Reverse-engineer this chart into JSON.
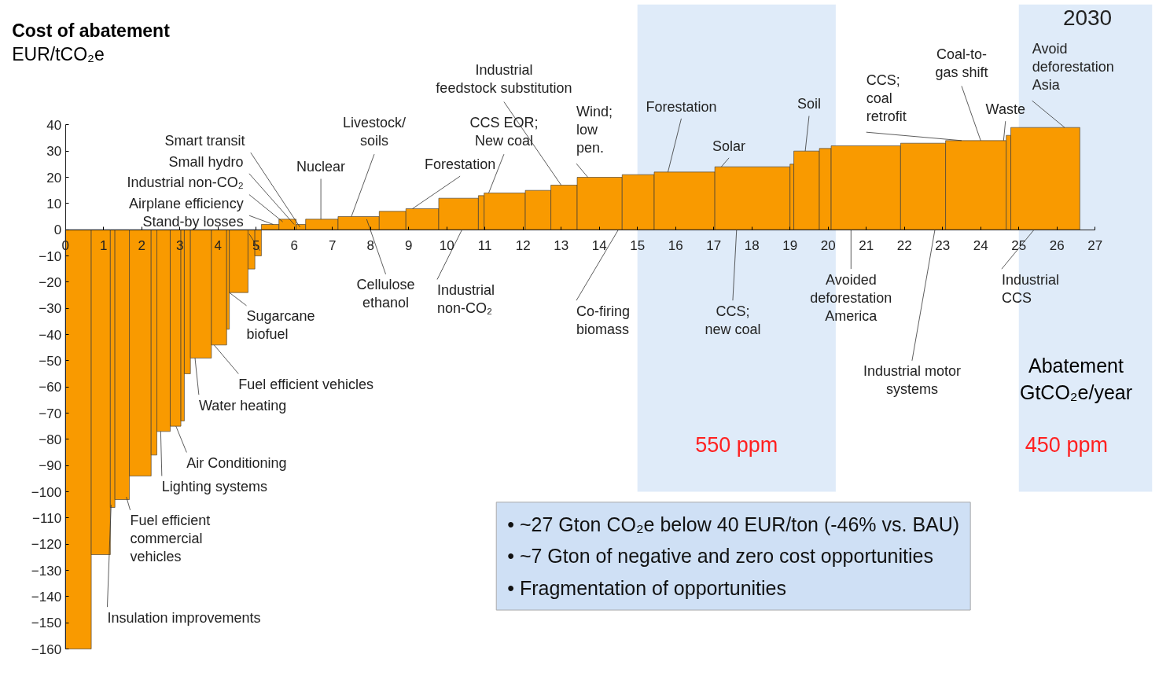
{
  "chart_data": {
    "type": "histogram",
    "title": "Cost of abatement",
    "ylabel": "EUR/tCO₂e",
    "xlabel": "Abatement\nGtCO₂e/year",
    "bins": [
      0,
      0.68,
      1.18,
      1.3,
      1.68,
      2.25,
      2.4,
      2.75,
      3.03,
      3.12,
      3.28,
      3.83,
      4.23,
      4.3,
      4.79,
      4.97,
      5.14,
      5.6,
      6.05,
      6.3,
      7.15,
      8.23,
      8.93,
      9.79,
      10.83,
      10.98,
      12.06,
      12.73,
      13.42,
      14.6,
      15.44,
      17.03,
      19.0,
      19.1,
      19.77,
      20.08,
      21.9,
      23.08,
      24.67,
      24.79,
      26.6
    ],
    "values": [
      -160,
      -124,
      -106,
      -103,
      -94,
      -86,
      -77,
      -75,
      -73,
      -55,
      -49,
      -44,
      -38,
      -24,
      -15,
      -10,
      2,
      4,
      2,
      4,
      5,
      7,
      8,
      12,
      13,
      14,
      15,
      17,
      20,
      21,
      22,
      24,
      25,
      30,
      31,
      32,
      33,
      34,
      36,
      39
    ],
    "color": "#f99a00",
    "xlim": [
      0,
      27
    ],
    "ylim": [
      -160,
      40
    ],
    "xticks": [
      0,
      1,
      2,
      3,
      4,
      5,
      6,
      7,
      8,
      9,
      10,
      11,
      12,
      13,
      14,
      15,
      16,
      17,
      18,
      19,
      20,
      21,
      22,
      23,
      24,
      25,
      26,
      27
    ],
    "yticks": [
      -160,
      -150,
      -140,
      -130,
      -120,
      -110,
      -100,
      -90,
      -80,
      -70,
      -60,
      -50,
      -40,
      -30,
      -20,
      -10,
      0,
      10,
      20,
      30,
      40
    ],
    "grid": false,
    "bands": [
      {
        "axis": "x",
        "from": 15,
        "to": 20.2,
        "label": "550 ppm",
        "color": "#dce9f8"
      },
      {
        "axis": "x",
        "from": 25,
        "to": 28.5,
        "label": "450 ppm",
        "color": "#dce9f8"
      }
    ],
    "annotations": [
      {
        "text": "Smart transit",
        "x": 6.15,
        "y": 1
      },
      {
        "text": "Small hydro",
        "x": 6.0,
        "y": 2
      },
      {
        "text": "Industrial non-CO₂",
        "x": 5.7,
        "y": 3
      },
      {
        "text": "Airplane efficiency",
        "x": 5.45,
        "y": 2
      },
      {
        "text": "Stand-by losses",
        "x": 5.1,
        "y": -8
      },
      {
        "text": "Nuclear",
        "x": 6.7,
        "y": 4
      },
      {
        "text": "Livestock/\nsoils",
        "x": 7.5,
        "y": 5
      },
      {
        "text": "Forestation",
        "x": 9.1,
        "y": 8
      },
      {
        "text": "CCS EOR;\nNew coal",
        "x": 11.1,
        "y": 14
      },
      {
        "text": "Industrial\nfeedstock substitution",
        "x": 13.0,
        "y": 17
      },
      {
        "text": "Wind;\nlow\npen.",
        "x": 13.7,
        "y": 20
      },
      {
        "text": "Forestation",
        "x": 15.8,
        "y": 22
      },
      {
        "text": "Solar",
        "x": 17.2,
        "y": 24
      },
      {
        "text": "Soil",
        "x": 19.4,
        "y": 30
      },
      {
        "text": "CCS;\ncoal\nretrofit",
        "x": 23.5,
        "y": 34
      },
      {
        "text": "Coal-to-\ngas shift",
        "x": 24.0,
        "y": 34
      },
      {
        "text": "Waste",
        "x": 24.6,
        "y": 34
      },
      {
        "text": "Avoid\ndeforestation\nAsia",
        "x": 26.2,
        "y": 39
      },
      {
        "text": "Cellulose\nethanol",
        "x": 7.9,
        "y": 4
      },
      {
        "text": "Industrial\nnon-CO₂",
        "x": 10.4,
        "y": 0
      },
      {
        "text": "Co-firing\nbiomass",
        "x": 14.5,
        "y": 0
      },
      {
        "text": "CCS;\nnew coal",
        "x": 17.6,
        "y": 0
      },
      {
        "text": "Avoided\ndeforestation\nAmerica",
        "x": 20.6,
        "y": 0
      },
      {
        "text": "Industrial motor\nsystems",
        "x": 22.8,
        "y": 0
      },
      {
        "text": "Industrial\nCCS",
        "x": 25.4,
        "y": 0
      },
      {
        "text": "Sugarcane\nbiofuel",
        "x": 4.3,
        "y": -24
      },
      {
        "text": "Fuel efficient vehicles",
        "x": 3.9,
        "y": -44
      },
      {
        "text": "Water heating",
        "x": 3.4,
        "y": -49
      },
      {
        "text": "Air Conditioning",
        "x": 2.9,
        "y": -75
      },
      {
        "text": "Lighting systems",
        "x": 2.5,
        "y": -77
      },
      {
        "text": "Fuel efficient\ncommercial\nvehicles",
        "x": 1.6,
        "y": -102
      },
      {
        "text": "Insulation improvements",
        "x": 1.2,
        "y": -105
      },
      "2030",
      "• ~27 Gton CO₂e below 40 EUR/ton (-46% vs. BAU)",
      "• ~7 Gton of negative and zero cost opportunities",
      "• Fragmentation of opportunities"
    ]
  }
}
